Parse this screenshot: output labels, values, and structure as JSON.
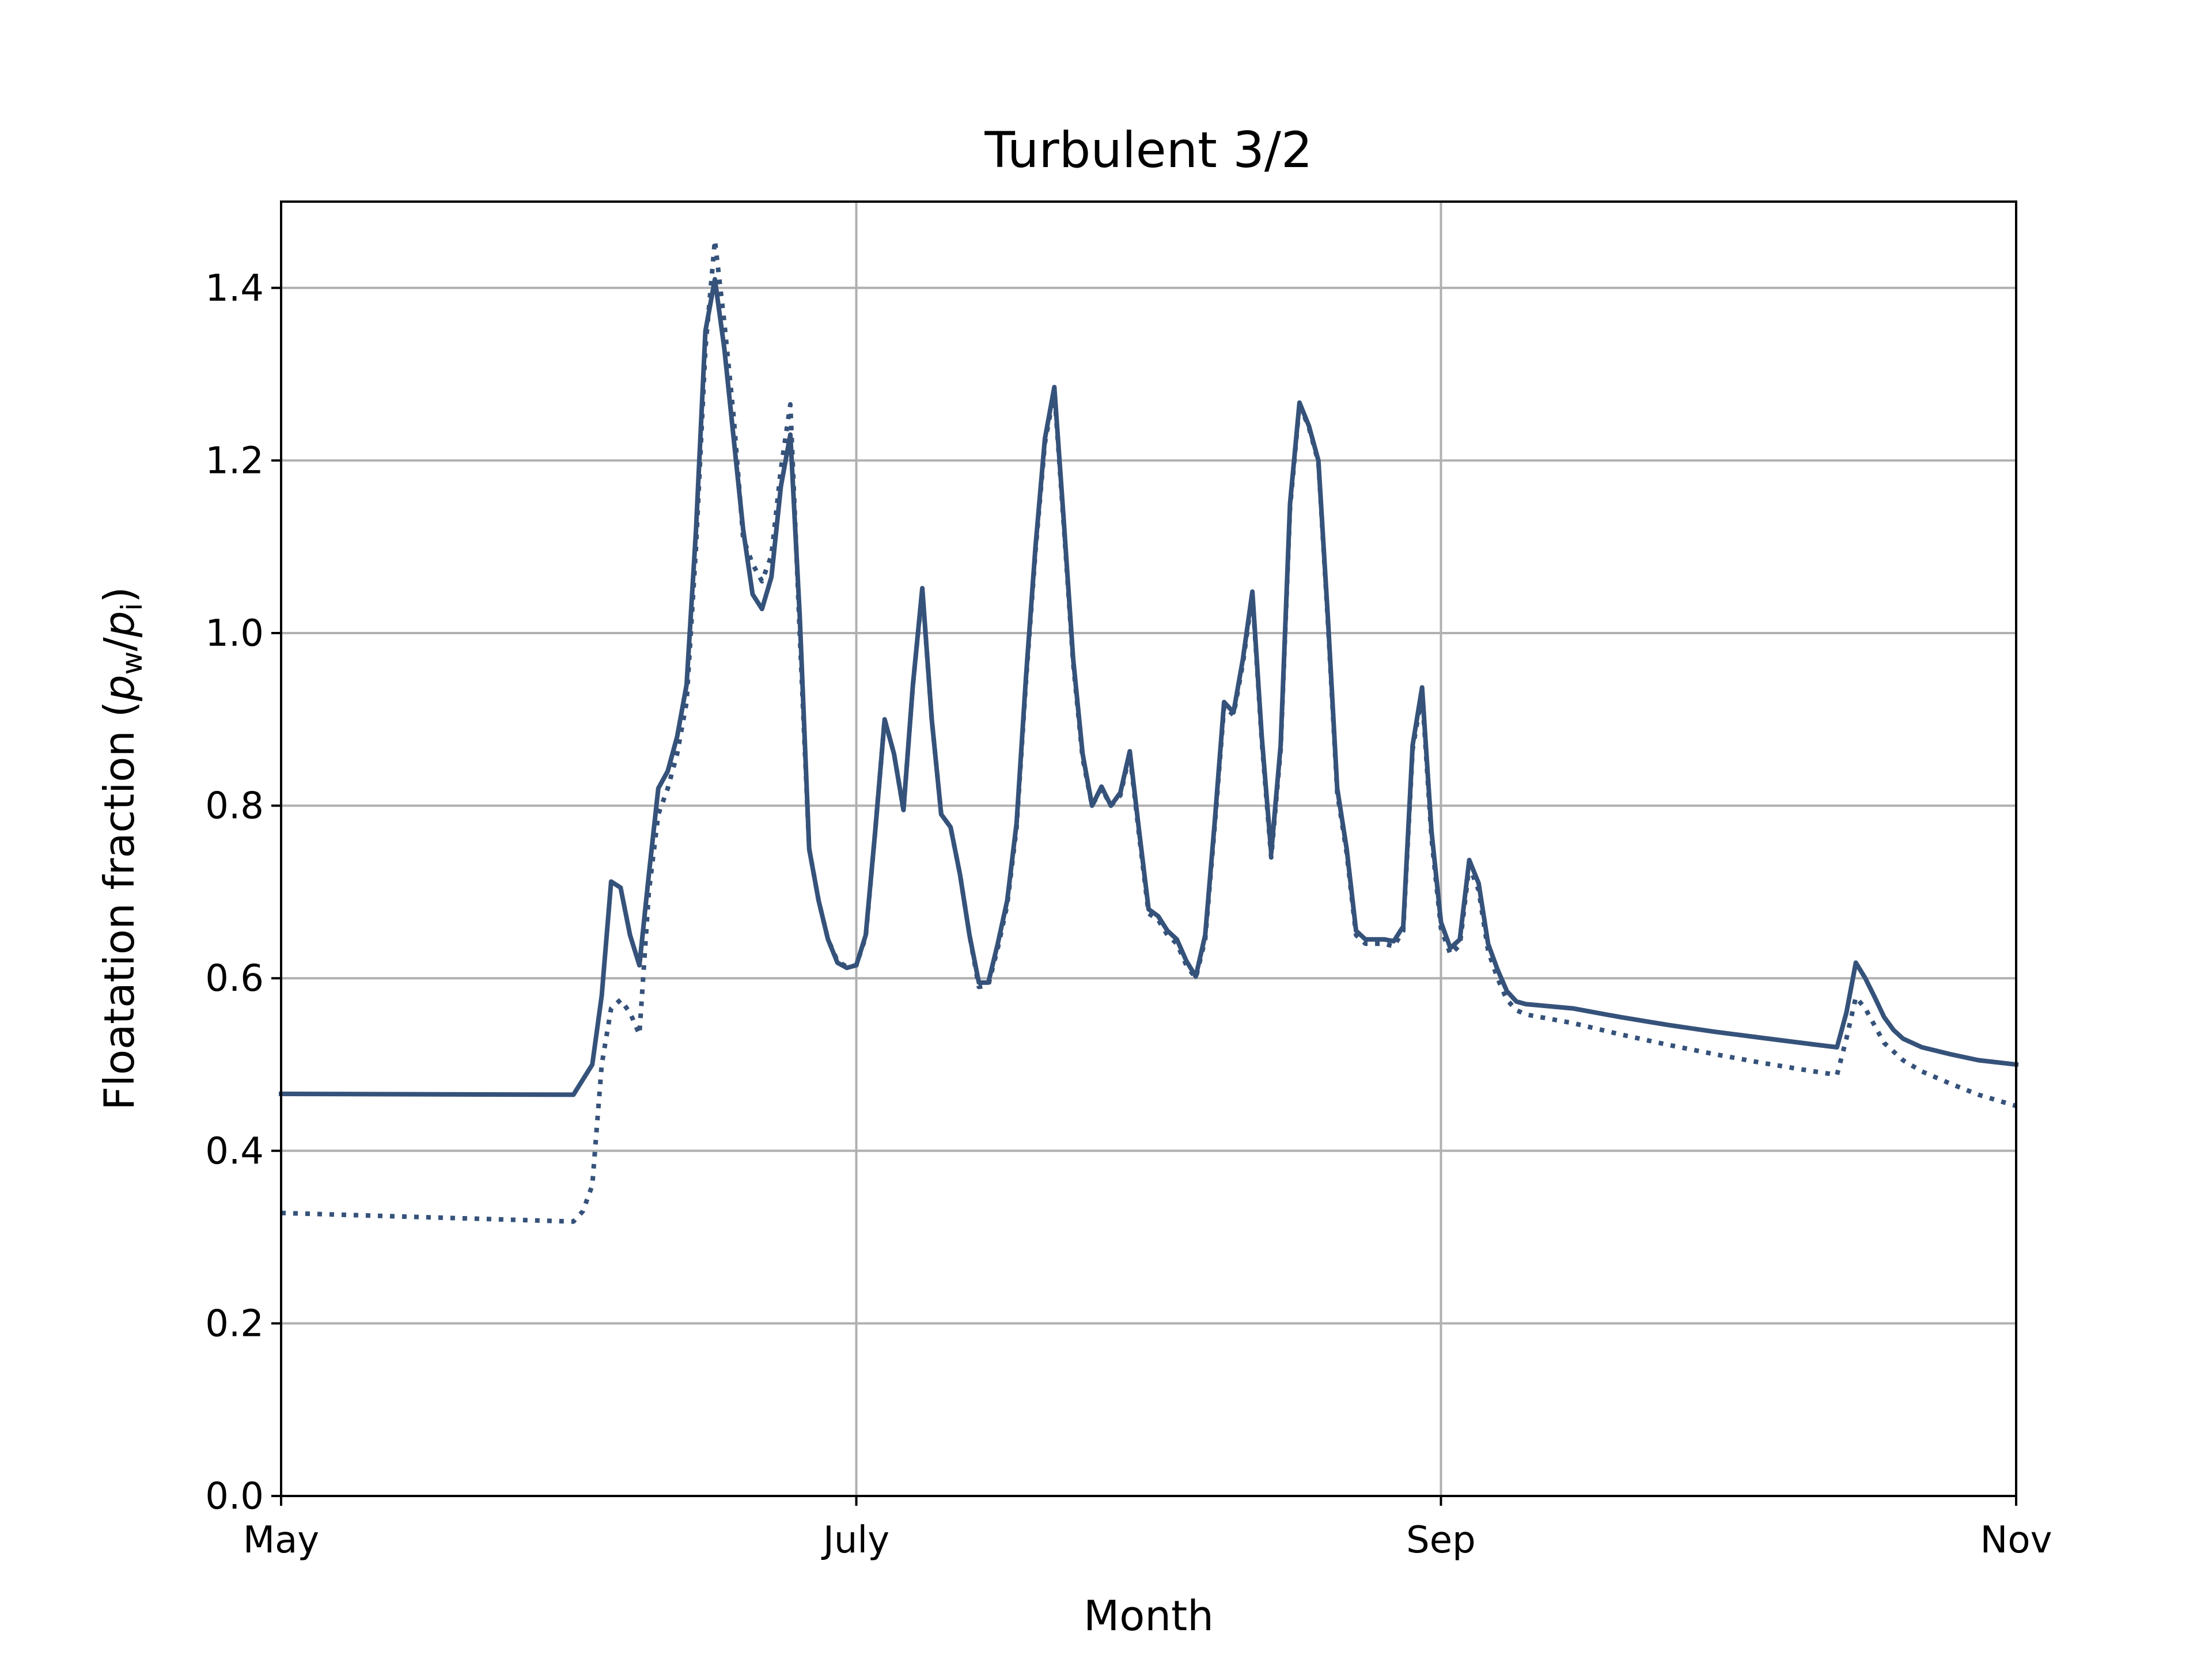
{
  "chart_data": {
    "type": "line",
    "title": "Turbulent 3/2",
    "xlabel": "Month",
    "ylabel": "Floatation fraction (",
    "ylabel_p": "p",
    "ylabel_w": "w",
    "ylabel_slash": "/",
    "ylabel_i": "i",
    "ylabel_close": ")",
    "x_ticks": [
      {
        "label": "May",
        "value": "2000-05-01"
      },
      {
        "label": "July",
        "value": "2000-07-01"
      },
      {
        "label": "Sep",
        "value": "2000-09-01"
      },
      {
        "label": "Nov",
        "value": "2000-11-01"
      }
    ],
    "y_ticks": [
      "0.0",
      "0.2",
      "0.4",
      "0.6",
      "0.8",
      "1.0",
      "1.2",
      "1.4"
    ],
    "xlim": [
      "2000-05-01",
      "2000-11-01"
    ],
    "ylim": [
      0,
      1.5
    ],
    "grid": true,
    "color": "#35527a",
    "series": [
      {
        "style": "solid",
        "points": [
          [
            "2000-05-01",
            0.466
          ],
          [
            "2000-06-01",
            0.465
          ],
          [
            "2000-06-03",
            0.5
          ],
          [
            "2000-06-04",
            0.58
          ],
          [
            "2000-06-05",
            0.712
          ],
          [
            "2000-06-06",
            0.705
          ],
          [
            "2000-06-07",
            0.65
          ],
          [
            "2000-06-08",
            0.615
          ],
          [
            "2000-06-09",
            0.72
          ],
          [
            "2000-06-10",
            0.82
          ],
          [
            "2000-06-11",
            0.84
          ],
          [
            "2000-06-12",
            0.88
          ],
          [
            "2000-06-13",
            0.94
          ],
          [
            "2000-06-14",
            1.12
          ],
          [
            "2000-06-15",
            1.35
          ],
          [
            "2000-06-16",
            1.41
          ],
          [
            "2000-06-17",
            1.33
          ],
          [
            "2000-06-19",
            1.12
          ],
          [
            "2000-06-20",
            1.045
          ],
          [
            "2000-06-21",
            1.028
          ],
          [
            "2000-06-22",
            1.065
          ],
          [
            "2000-06-23",
            1.17
          ],
          [
            "2000-06-24",
            1.23
          ],
          [
            "2000-06-25",
            1.02
          ],
          [
            "2000-06-26",
            0.75
          ],
          [
            "2000-06-27",
            0.69
          ],
          [
            "2000-06-28",
            0.645
          ],
          [
            "2000-06-29",
            0.618
          ],
          [
            "2000-06-30",
            0.612
          ],
          [
            "2000-07-01",
            0.615
          ],
          [
            "2000-07-02",
            0.65
          ],
          [
            "2000-07-03",
            0.77
          ],
          [
            "2000-07-04",
            0.9
          ],
          [
            "2000-07-05",
            0.86
          ],
          [
            "2000-07-06",
            0.795
          ],
          [
            "2000-07-07",
            0.94
          ],
          [
            "2000-07-08",
            1.052
          ],
          [
            "2000-07-09",
            0.9
          ],
          [
            "2000-07-10",
            0.79
          ],
          [
            "2000-07-11",
            0.775
          ],
          [
            "2000-07-12",
            0.72
          ],
          [
            "2000-07-13",
            0.65
          ],
          [
            "2000-07-14",
            0.595
          ],
          [
            "2000-07-15",
            0.595
          ],
          [
            "2000-07-16",
            0.64
          ],
          [
            "2000-07-17",
            0.69
          ],
          [
            "2000-07-18",
            0.78
          ],
          [
            "2000-07-19",
            0.95
          ],
          [
            "2000-07-20",
            1.1
          ],
          [
            "2000-07-21",
            1.225
          ],
          [
            "2000-07-22",
            1.285
          ],
          [
            "2000-07-23",
            1.13
          ],
          [
            "2000-07-24",
            0.97
          ],
          [
            "2000-07-25",
            0.86
          ],
          [
            "2000-07-26",
            0.8
          ],
          [
            "2000-07-27",
            0.822
          ],
          [
            "2000-07-28",
            0.8
          ],
          [
            "2000-07-29",
            0.815
          ],
          [
            "2000-07-30",
            0.863
          ],
          [
            "2000-07-31",
            0.77
          ],
          [
            "2000-08-01",
            0.68
          ],
          [
            "2000-08-02",
            0.672
          ],
          [
            "2000-08-03",
            0.655
          ],
          [
            "2000-08-04",
            0.645
          ],
          [
            "2000-08-05",
            0.62
          ],
          [
            "2000-08-06",
            0.602
          ],
          [
            "2000-08-07",
            0.65
          ],
          [
            "2000-08-08",
            0.78
          ],
          [
            "2000-08-09",
            0.92
          ],
          [
            "2000-08-10",
            0.908
          ],
          [
            "2000-08-11",
            0.97
          ],
          [
            "2000-08-12",
            1.048
          ],
          [
            "2000-08-13",
            0.88
          ],
          [
            "2000-08-14",
            0.745
          ],
          [
            "2000-08-15",
            0.87
          ],
          [
            "2000-08-16",
            1.15
          ],
          [
            "2000-08-17",
            1.267
          ],
          [
            "2000-08-18",
            1.24
          ],
          [
            "2000-08-19",
            1.2
          ],
          [
            "2000-08-20",
            1.02
          ],
          [
            "2000-08-21",
            0.82
          ],
          [
            "2000-08-22",
            0.75
          ],
          [
            "2000-08-23",
            0.655
          ],
          [
            "2000-08-24",
            0.645
          ],
          [
            "2000-08-26",
            0.645
          ],
          [
            "2000-08-27",
            0.643
          ],
          [
            "2000-08-28",
            0.66
          ],
          [
            "2000-08-29",
            0.87
          ],
          [
            "2000-08-30",
            0.937
          ],
          [
            "2000-08-31",
            0.77
          ],
          [
            "2000-09-01",
            0.665
          ],
          [
            "2000-09-02",
            0.635
          ],
          [
            "2000-09-03",
            0.645
          ],
          [
            "2000-09-04",
            0.737
          ],
          [
            "2000-09-05",
            0.71
          ],
          [
            "2000-09-06",
            0.64
          ],
          [
            "2000-09-07",
            0.61
          ],
          [
            "2000-09-08",
            0.585
          ],
          [
            "2000-09-09",
            0.573
          ],
          [
            "2000-09-10",
            0.57
          ],
          [
            "2000-09-15",
            0.565
          ],
          [
            "2000-09-20",
            0.555
          ],
          [
            "2000-09-25",
            0.546
          ],
          [
            "2000-09-30",
            0.538
          ],
          [
            "2000-10-05",
            0.531
          ],
          [
            "2000-10-10",
            0.524
          ],
          [
            "2000-10-13",
            0.52
          ],
          [
            "2000-10-14",
            0.56
          ],
          [
            "2000-10-15",
            0.618
          ],
          [
            "2000-10-16",
            0.6
          ],
          [
            "2000-10-17",
            0.578
          ],
          [
            "2000-10-18",
            0.555
          ],
          [
            "2000-10-19",
            0.54
          ],
          [
            "2000-10-20",
            0.53
          ],
          [
            "2000-10-22",
            0.52
          ],
          [
            "2000-10-25",
            0.512
          ],
          [
            "2000-10-28",
            0.505
          ],
          [
            "2000-11-01",
            0.5
          ]
        ]
      },
      {
        "style": "dotted",
        "points": [
          [
            "2000-05-01",
            0.328
          ],
          [
            "2000-06-01",
            0.318
          ],
          [
            "2000-06-02",
            0.33
          ],
          [
            "2000-06-03",
            0.36
          ],
          [
            "2000-06-04",
            0.5
          ],
          [
            "2000-06-05",
            0.565
          ],
          [
            "2000-06-06",
            0.575
          ],
          [
            "2000-06-07",
            0.56
          ],
          [
            "2000-06-08",
            0.535
          ],
          [
            "2000-06-09",
            0.7
          ],
          [
            "2000-06-10",
            0.79
          ],
          [
            "2000-06-11",
            0.82
          ],
          [
            "2000-06-12",
            0.86
          ],
          [
            "2000-06-13",
            0.92
          ],
          [
            "2000-06-14",
            1.1
          ],
          [
            "2000-06-15",
            1.33
          ],
          [
            "2000-06-16",
            1.455
          ],
          [
            "2000-06-17",
            1.36
          ],
          [
            "2000-06-18",
            1.25
          ],
          [
            "2000-06-19",
            1.11
          ],
          [
            "2000-06-20",
            1.08
          ],
          [
            "2000-06-21",
            1.06
          ],
          [
            "2000-06-22",
            1.09
          ],
          [
            "2000-06-23",
            1.19
          ],
          [
            "2000-06-24",
            1.265
          ],
          [
            "2000-06-25",
            1.0
          ],
          [
            "2000-06-26",
            0.75
          ],
          [
            "2000-06-27",
            0.69
          ],
          [
            "2000-06-28",
            0.645
          ],
          [
            "2000-06-29",
            0.62
          ],
          [
            "2000-06-30",
            0.613
          ],
          [
            "2000-07-01",
            0.615
          ],
          [
            "2000-07-02",
            0.648
          ],
          [
            "2000-07-03",
            0.77
          ],
          [
            "2000-07-04",
            0.9
          ],
          [
            "2000-07-05",
            0.86
          ],
          [
            "2000-07-06",
            0.795
          ],
          [
            "2000-07-07",
            0.94
          ],
          [
            "2000-07-08",
            1.05
          ],
          [
            "2000-07-09",
            0.9
          ],
          [
            "2000-07-10",
            0.79
          ],
          [
            "2000-07-11",
            0.775
          ],
          [
            "2000-07-12",
            0.72
          ],
          [
            "2000-07-13",
            0.65
          ],
          [
            "2000-07-14",
            0.59
          ],
          [
            "2000-07-15",
            0.592
          ],
          [
            "2000-07-16",
            0.635
          ],
          [
            "2000-07-17",
            0.685
          ],
          [
            "2000-07-18",
            0.775
          ],
          [
            "2000-07-19",
            0.945
          ],
          [
            "2000-07-20",
            1.095
          ],
          [
            "2000-07-21",
            1.22
          ],
          [
            "2000-07-22",
            1.28
          ],
          [
            "2000-07-23",
            1.125
          ],
          [
            "2000-07-24",
            0.965
          ],
          [
            "2000-07-25",
            0.855
          ],
          [
            "2000-07-26",
            0.8
          ],
          [
            "2000-07-27",
            0.82
          ],
          [
            "2000-07-28",
            0.8
          ],
          [
            "2000-07-29",
            0.812
          ],
          [
            "2000-07-30",
            0.86
          ],
          [
            "2000-07-31",
            0.765
          ],
          [
            "2000-08-01",
            0.675
          ],
          [
            "2000-08-02",
            0.668
          ],
          [
            "2000-08-03",
            0.65
          ],
          [
            "2000-08-04",
            0.64
          ],
          [
            "2000-08-05",
            0.615
          ],
          [
            "2000-08-06",
            0.6
          ],
          [
            "2000-08-07",
            0.645
          ],
          [
            "2000-08-08",
            0.775
          ],
          [
            "2000-08-09",
            0.915
          ],
          [
            "2000-08-10",
            0.905
          ],
          [
            "2000-08-11",
            0.965
          ],
          [
            "2000-08-12",
            1.045
          ],
          [
            "2000-08-13",
            0.875
          ],
          [
            "2000-08-14",
            0.74
          ],
          [
            "2000-08-15",
            0.865
          ],
          [
            "2000-08-16",
            1.145
          ],
          [
            "2000-08-17",
            1.265
          ],
          [
            "2000-08-18",
            1.238
          ],
          [
            "2000-08-19",
            1.198
          ],
          [
            "2000-08-20",
            1.015
          ],
          [
            "2000-08-21",
            0.815
          ],
          [
            "2000-08-22",
            0.745
          ],
          [
            "2000-08-23",
            0.65
          ],
          [
            "2000-08-24",
            0.64
          ],
          [
            "2000-08-26",
            0.64
          ],
          [
            "2000-08-27",
            0.637
          ],
          [
            "2000-08-28",
            0.655
          ],
          [
            "2000-08-29",
            0.865
          ],
          [
            "2000-08-30",
            0.93
          ],
          [
            "2000-08-31",
            0.762
          ],
          [
            "2000-09-01",
            0.658
          ],
          [
            "2000-09-02",
            0.628
          ],
          [
            "2000-09-03",
            0.638
          ],
          [
            "2000-09-04",
            0.73
          ],
          [
            "2000-09-05",
            0.702
          ],
          [
            "2000-09-06",
            0.632
          ],
          [
            "2000-09-07",
            0.6
          ],
          [
            "2000-09-08",
            0.575
          ],
          [
            "2000-09-09",
            0.563
          ],
          [
            "2000-09-10",
            0.558
          ],
          [
            "2000-09-15",
            0.548
          ],
          [
            "2000-09-20",
            0.535
          ],
          [
            "2000-09-25",
            0.523
          ],
          [
            "2000-09-30",
            0.512
          ],
          [
            "2000-10-05",
            0.502
          ],
          [
            "2000-10-10",
            0.493
          ],
          [
            "2000-10-13",
            0.488
          ],
          [
            "2000-10-14",
            0.53
          ],
          [
            "2000-10-15",
            0.578
          ],
          [
            "2000-10-16",
            0.565
          ],
          [
            "2000-10-17",
            0.545
          ],
          [
            "2000-10-18",
            0.525
          ],
          [
            "2000-10-20",
            0.505
          ],
          [
            "2000-10-22",
            0.492
          ],
          [
            "2000-10-25",
            0.478
          ],
          [
            "2000-10-28",
            0.465
          ],
          [
            "2000-11-01",
            0.452
          ]
        ]
      }
    ]
  }
}
